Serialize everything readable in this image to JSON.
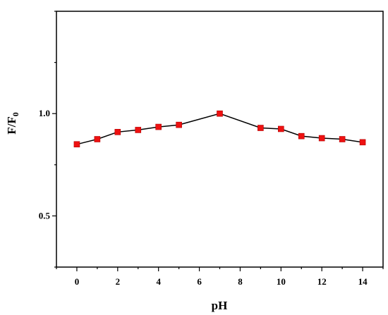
{
  "chart_data": {
    "type": "line",
    "title": "",
    "xlabel": "pH",
    "ylabel": {
      "main": "F/F",
      "sub": "0"
    },
    "xlim": [
      -1,
      15
    ],
    "ylim": [
      0.25,
      1.5
    ],
    "xticks": [
      0,
      2,
      4,
      6,
      8,
      10,
      12,
      14
    ],
    "xtick_labels": [
      "0",
      "2",
      "4",
      "6",
      "8",
      "10",
      "12",
      "14"
    ],
    "yticks": [
      0.5,
      1.0
    ],
    "ytick_labels": [
      "0.5",
      "1.0"
    ],
    "grid": false,
    "legend": false,
    "series": [
      {
        "x": [
          0,
          1,
          2,
          3,
          4,
          5,
          7,
          9,
          10,
          11,
          12,
          13,
          14
        ],
        "y": [
          0.85,
          0.875,
          0.91,
          0.92,
          0.935,
          0.945,
          1.0,
          0.93,
          0.925,
          0.89,
          0.88,
          0.875,
          0.86
        ],
        "marker": "square",
        "marker_color": "#ee1111",
        "line_color": "#000000"
      }
    ]
  }
}
